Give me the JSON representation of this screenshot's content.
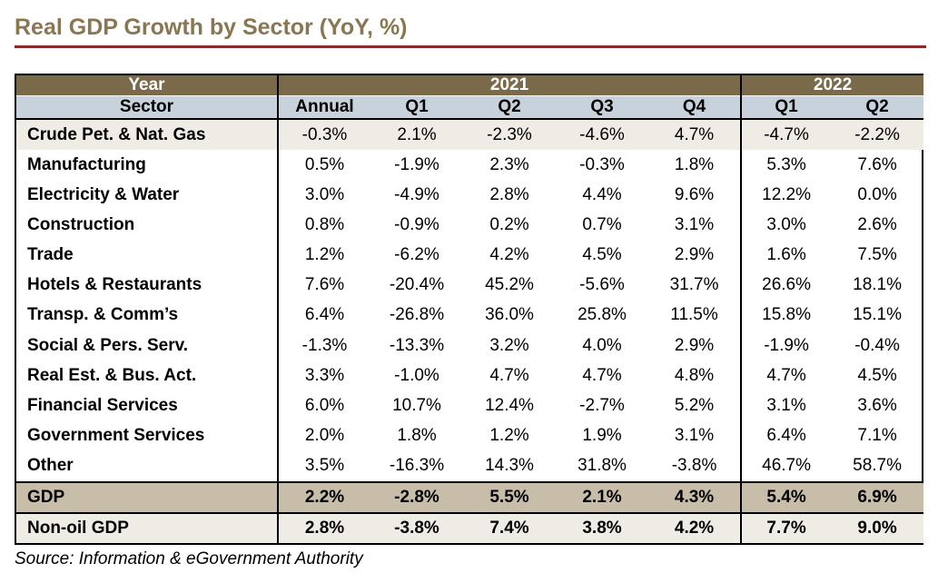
{
  "title": "Real GDP Growth by Sector (YoY, %)",
  "table": {
    "year_header": "Year",
    "sector_header": "Sector",
    "year_2021": "2021",
    "year_2022": "2022",
    "columns": [
      "Annual",
      "Q1",
      "Q2",
      "Q3",
      "Q4",
      "Q1",
      "Q2"
    ],
    "rows": [
      {
        "sector": "Crude Pet. & Nat. Gas",
        "values": [
          "-0.3%",
          "2.1%",
          "-2.3%",
          "-4.6%",
          "4.7%",
          "-4.7%",
          "-2.2%"
        ]
      },
      {
        "sector": "Manufacturing",
        "values": [
          "0.5%",
          "-1.9%",
          "2.3%",
          "-0.3%",
          "1.8%",
          "5.3%",
          "7.6%"
        ]
      },
      {
        "sector": "Electricity & Water",
        "values": [
          "3.0%",
          "-4.9%",
          "2.8%",
          "4.4%",
          "9.6%",
          "12.2%",
          "0.0%"
        ]
      },
      {
        "sector": "Construction",
        "values": [
          "0.8%",
          "-0.9%",
          "0.2%",
          "0.7%",
          "3.1%",
          "3.0%",
          "2.6%"
        ]
      },
      {
        "sector": "Trade",
        "values": [
          "1.2%",
          "-6.2%",
          "4.2%",
          "4.5%",
          "2.9%",
          "1.6%",
          "7.5%"
        ]
      },
      {
        "sector": "Hotels & Restaurants",
        "values": [
          "7.6%",
          "-20.4%",
          "45.2%",
          "-5.6%",
          "31.7%",
          "26.6%",
          "18.1%"
        ]
      },
      {
        "sector": "Transp. & Comm’s",
        "values": [
          "6.4%",
          "-26.8%",
          "36.0%",
          "25.8%",
          "11.5%",
          "15.8%",
          "15.1%"
        ]
      },
      {
        "sector": "Social & Pers. Serv.",
        "values": [
          "-1.3%",
          "-13.3%",
          "3.2%",
          "4.0%",
          "2.9%",
          "-1.9%",
          "-0.4%"
        ]
      },
      {
        "sector": "Real Est. & Bus. Act.",
        "values": [
          "3.3%",
          "-1.0%",
          "4.7%",
          "4.7%",
          "4.8%",
          "4.7%",
          "4.5%"
        ]
      },
      {
        "sector": "Financial Services",
        "values": [
          "6.0%",
          "10.7%",
          "12.4%",
          "-2.7%",
          "5.2%",
          "3.1%",
          "3.6%"
        ]
      },
      {
        "sector": "Government Services",
        "values": [
          "2.0%",
          "1.8%",
          "1.2%",
          "1.9%",
          "3.1%",
          "6.4%",
          "7.1%"
        ]
      },
      {
        "sector": "Other",
        "values": [
          "3.5%",
          "-16.3%",
          "14.3%",
          "31.8%",
          "-3.8%",
          "46.7%",
          "58.7%"
        ]
      }
    ],
    "gdp": {
      "sector": "GDP",
      "values": [
        "2.2%",
        "-2.8%",
        "5.5%",
        "2.1%",
        "4.3%",
        "5.4%",
        "6.9%"
      ]
    },
    "non_oil_gdp": {
      "sector": "Non-oil GDP",
      "values": [
        "2.8%",
        "-3.8%",
        "7.4%",
        "3.8%",
        "4.2%",
        "7.7%",
        "9.0%"
      ]
    }
  },
  "source": "Source: Information & eGovernment Authority",
  "colors": {
    "title": "#8a7650",
    "title_rule": "#8b2a2a",
    "header_year": "#7a6a4a",
    "header_sector": "#c7d2dc",
    "band": "#efebe5",
    "gdp_row": "#c8bda9"
  }
}
